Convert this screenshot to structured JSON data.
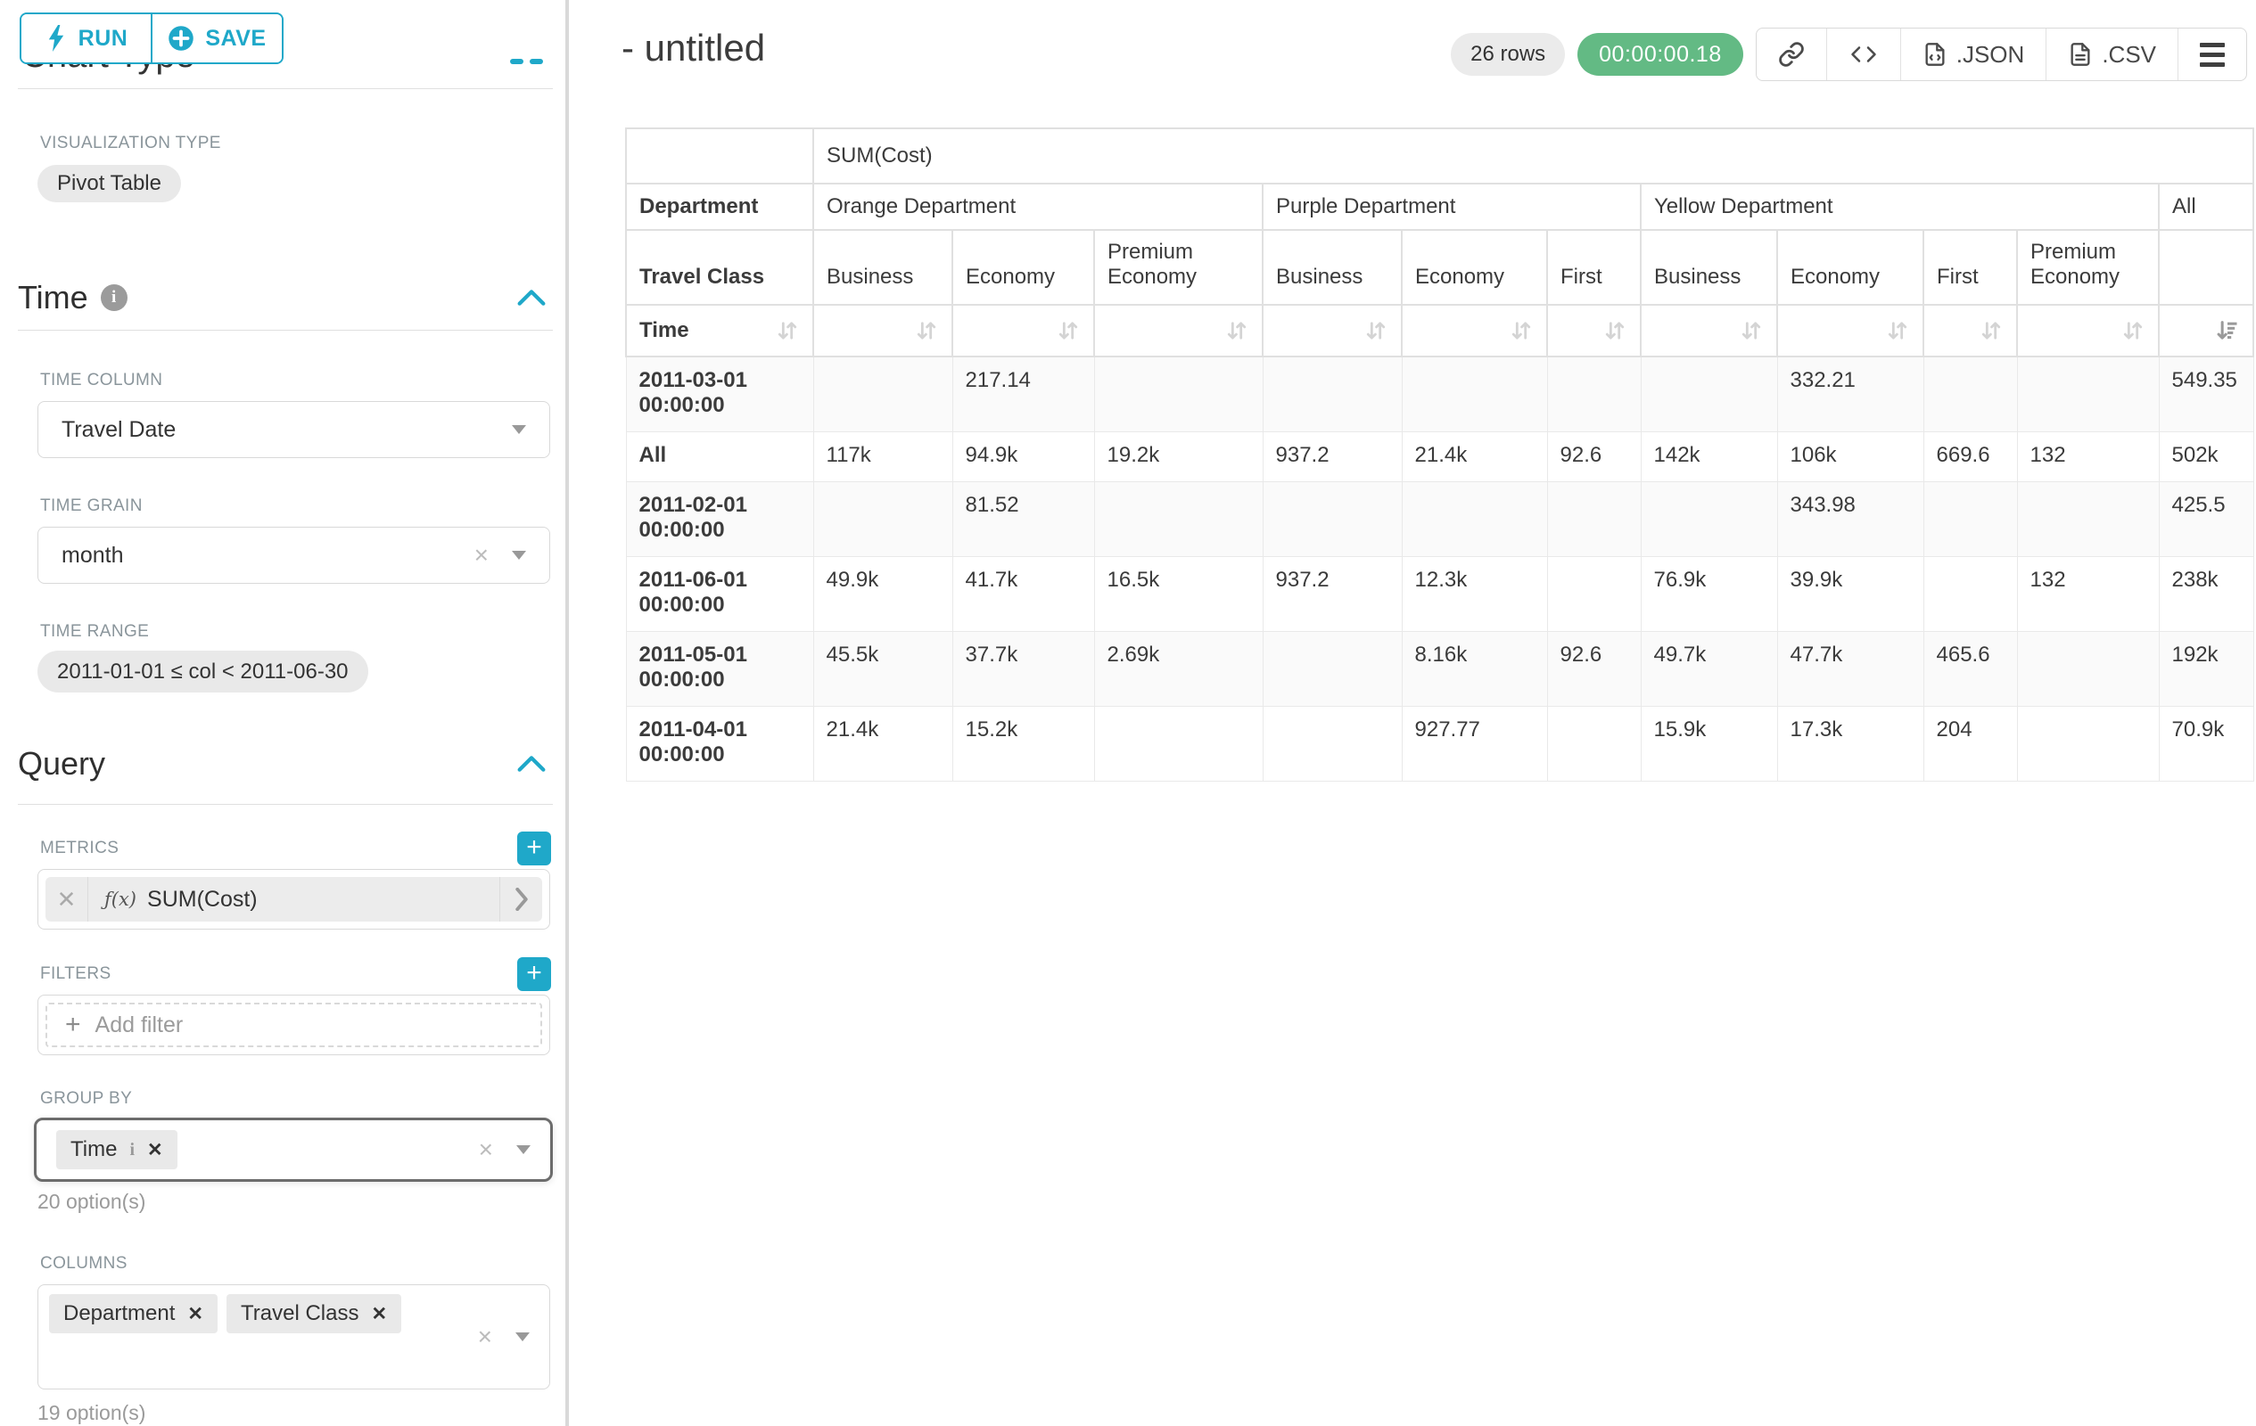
{
  "sidebar": {
    "run_label": "RUN",
    "save_label": "SAVE",
    "scrolled_heading": "Chart Type",
    "visualization_type": {
      "label": "VISUALIZATION TYPE",
      "value": "Pivot Table"
    },
    "time_section": {
      "title": "Time",
      "time_column": {
        "label": "TIME COLUMN",
        "value": "Travel Date"
      },
      "time_grain": {
        "label": "TIME GRAIN",
        "value": "month"
      },
      "time_range": {
        "label": "TIME RANGE",
        "value": "2011-01-01 ≤ col < 2011-06-30"
      }
    },
    "query_section": {
      "title": "Query",
      "metrics": {
        "label": "METRICS",
        "fx": "ƒ(x)",
        "value": "SUM(Cost)"
      },
      "filters": {
        "label": "FILTERS",
        "placeholder": "Add filter"
      },
      "group_by": {
        "label": "GROUP BY",
        "tags": [
          {
            "label": "Time",
            "has_info": true
          }
        ],
        "options_hint": "20 option(s)"
      },
      "columns": {
        "label": "COLUMNS",
        "tags": [
          {
            "label": "Department",
            "has_info": false
          },
          {
            "label": "Travel Class",
            "has_info": false
          }
        ],
        "options_hint": "19 option(s)"
      }
    }
  },
  "header": {
    "title": "- untitled",
    "row_count": "26 rows",
    "duration": "00:00:00.18",
    "export_json": ".JSON",
    "export_csv": ".CSV"
  },
  "pivot": {
    "metric": "SUM(Cost)",
    "row_axis": [
      "Department",
      "Travel Class",
      "Time"
    ],
    "column_groups": [
      {
        "name": "Orange Department",
        "classes": [
          "Business",
          "Economy",
          "Premium Economy"
        ]
      },
      {
        "name": "Purple Department",
        "classes": [
          "Business",
          "Economy",
          "First"
        ]
      },
      {
        "name": "Yellow Department",
        "classes": [
          "Business",
          "Economy",
          "First",
          "Premium Economy"
        ]
      },
      {
        "name": "All",
        "classes": [
          ""
        ]
      }
    ],
    "sorted_column_index": 10,
    "rows": [
      {
        "time": "2011-03-01 00:00:00",
        "total": false,
        "values": [
          "",
          "217.14",
          "",
          "",
          "",
          "",
          "",
          "332.21",
          "",
          "",
          "549.35"
        ]
      },
      {
        "time": "All",
        "total": true,
        "values": [
          "117k",
          "94.9k",
          "19.2k",
          "937.2",
          "21.4k",
          "92.6",
          "142k",
          "106k",
          "669.6",
          "132",
          "502k"
        ]
      },
      {
        "time": "2011-02-01 00:00:00",
        "total": false,
        "values": [
          "",
          "81.52",
          "",
          "",
          "",
          "",
          "",
          "343.98",
          "",
          "",
          "425.5"
        ]
      },
      {
        "time": "2011-06-01 00:00:00",
        "total": false,
        "values": [
          "49.9k",
          "41.7k",
          "16.5k",
          "937.2",
          "12.3k",
          "",
          "76.9k",
          "39.9k",
          "",
          "132",
          "238k"
        ]
      },
      {
        "time": "2011-05-01 00:00:00",
        "total": false,
        "values": [
          "45.5k",
          "37.7k",
          "2.69k",
          "",
          "8.16k",
          "92.6",
          "49.7k",
          "47.7k",
          "465.6",
          "",
          "192k"
        ]
      },
      {
        "time": "2011-04-01 00:00:00",
        "total": false,
        "values": [
          "21.4k",
          "15.2k",
          "",
          "",
          "927.77",
          "",
          "15.9k",
          "17.3k",
          "204",
          "",
          "70.9k"
        ]
      }
    ]
  },
  "colors": {
    "accent": "#1fa8c9",
    "success": "#63ba84"
  }
}
